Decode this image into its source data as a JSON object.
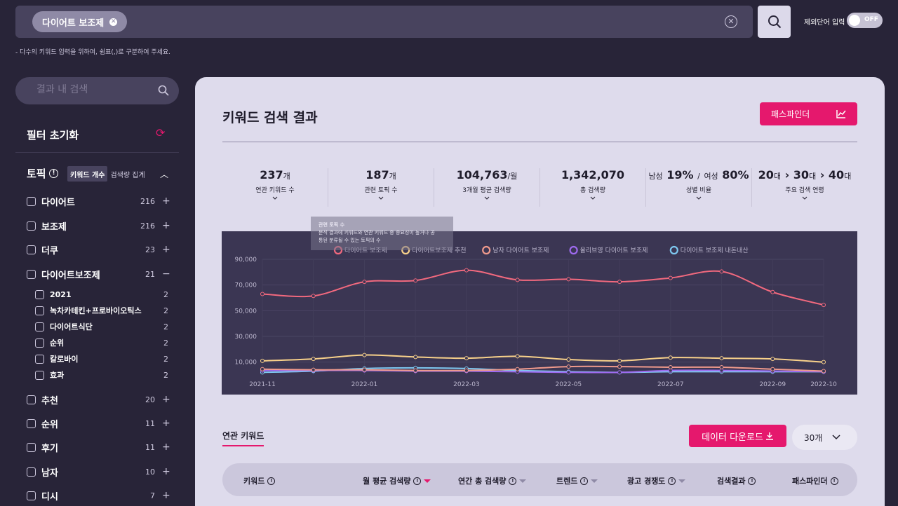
{
  "search": {
    "chip_label": "다이어트 보조제",
    "exclude_label": "제외단어 입력",
    "toggle_label": "OFF",
    "hint": "- 다수의 키워드 입력을 위하여, 쉼표(,)로 구분하여 주세요."
  },
  "sidebar": {
    "search_placeholder": "결과 내 검색",
    "filter_reset": "필터 초기화",
    "topic_title": "토픽",
    "seg_on": "키워드 개수",
    "seg_off": "검색량 집계",
    "items": [
      {
        "label": "다이어트",
        "count": "216",
        "pm": "+"
      },
      {
        "label": "보조제",
        "count": "216",
        "pm": "+"
      },
      {
        "label": "더쿠",
        "count": "23",
        "pm": "+"
      },
      {
        "label": "다이어트보조제",
        "count": "21",
        "pm": "−"
      },
      {
        "label": "추천",
        "count": "20",
        "pm": "+"
      },
      {
        "label": "순위",
        "count": "11",
        "pm": "+"
      },
      {
        "label": "후기",
        "count": "11",
        "pm": "+"
      },
      {
        "label": "남자",
        "count": "10",
        "pm": "+"
      },
      {
        "label": "디시",
        "count": "7",
        "pm": "+"
      }
    ],
    "sub_items": [
      {
        "label": "2021",
        "count": "2"
      },
      {
        "label": "녹차카테킨+프로바이오틱스",
        "count": "2"
      },
      {
        "label": "다이어트식단",
        "count": "2"
      },
      {
        "label": "순위",
        "count": "2"
      },
      {
        "label": "칼로바이",
        "count": "2"
      },
      {
        "label": "효과",
        "count": "2"
      }
    ]
  },
  "main": {
    "title": "키워드 검색 결과",
    "pathfinder_label": "패스파인더",
    "stats": [
      {
        "value": "237",
        "unit": "개",
        "label": "연관 키워드 수"
      },
      {
        "value": "187",
        "unit": "개",
        "label": "관련 토픽 수"
      },
      {
        "value": "104,763",
        "unit": "/월",
        "label": "3개월 평균 검색량"
      },
      {
        "value": "1,342,070",
        "unit": "",
        "label": "총 검색량"
      },
      {
        "male_label": "남성",
        "male": "19%",
        "sep": "/",
        "female_label": "여성",
        "female": "80%",
        "label": "성별 비율"
      },
      {
        "a1": "20",
        "u1": "대",
        "a2": "30",
        "u2": "대",
        "a3": "40",
        "u3": "대",
        "label": "주요 검색 연령"
      }
    ],
    "tooltip": {
      "title": "관련 토픽 수",
      "line1": "분석 결과에 키워드와 연관 키워드 중 중요성이 높거나 공",
      "line2": "통된 분류될 수 있는 토픽의 수"
    },
    "related_tab": "연관 키워드",
    "download_label": "데이터 다운로드",
    "count_select": "30개",
    "table_headers": [
      "키워드",
      "월 평균 검색량",
      "연간 총 검색량",
      "트렌드",
      "광고 경쟁도",
      "검색결과",
      "패스파인더"
    ]
  },
  "chart_data": {
    "type": "line",
    "x": [
      "2021-11",
      "2021-12",
      "2022-01",
      "2022-02",
      "2022-03",
      "2022-04",
      "2022-05",
      "2022-06",
      "2022-07",
      "2022-08",
      "2022-09",
      "2022-10"
    ],
    "x_tick_labels": [
      "2021-11",
      "2022-01",
      "2022-03",
      "2022-05",
      "2022-07",
      "2022-09",
      "2022-10"
    ],
    "y_tick_labels": [
      "90,000",
      "70,000",
      "50,000",
      "30,000",
      "10,000"
    ],
    "ylim": [
      0,
      90000
    ],
    "series": [
      {
        "name": "다이어트 보조제",
        "color": "#f2697e",
        "values": [
          63000,
          61500,
          72500,
          73500,
          81500,
          74000,
          74500,
          72500,
          75500,
          80500,
          64500,
          54500
        ]
      },
      {
        "name": "다이어트보조제 추천",
        "color": "#f8d18a",
        "values": [
          11000,
          12500,
          15500,
          14000,
          13000,
          14500,
          12000,
          11000,
          13500,
          13000,
          12500,
          10000
        ]
      },
      {
        "name": "남자 다이어트 보조제",
        "color": "#f09a8c",
        "values": [
          4500,
          4000,
          4000,
          3500,
          3500,
          4500,
          6500,
          6500,
          6000,
          6000,
          4500,
          3000
        ]
      },
      {
        "name": "올리브영 다이어트 보조제",
        "color": "#9f6bf0",
        "values": [
          3500,
          3500,
          3500,
          3000,
          3000,
          2500,
          2000,
          2000,
          3500,
          3500,
          3000,
          2500
        ]
      },
      {
        "name": "다이어트 보조제 내돈내산",
        "color": "#7ec8f0",
        "values": [
          2000,
          3000,
          5000,
          5500,
          5000,
          3500,
          2500,
          2000,
          2500,
          2500,
          2500,
          2500
        ]
      }
    ]
  }
}
